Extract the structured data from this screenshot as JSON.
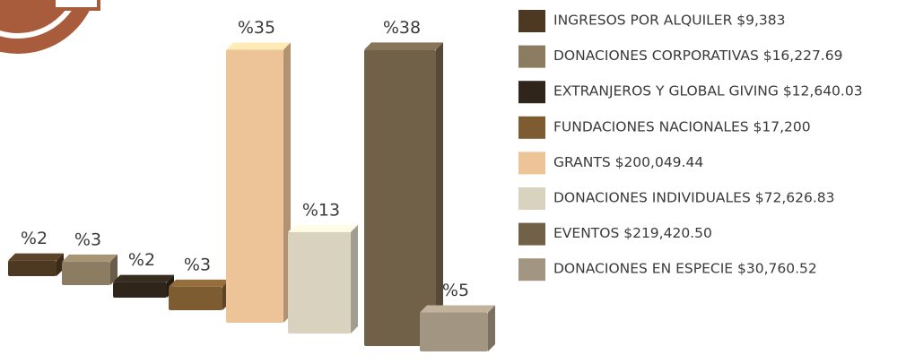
{
  "chart_data": {
    "type": "bar",
    "categories": [
      "INGRESOS POR ALQUILER $9,383",
      "DONACIONES CORPORATIVAS $16,227.69",
      "EXTRANJEROS Y GLOBAL GIVING $12,640.03",
      "FUNDACIONES NACIONALES $17,200",
      "GRANTS  $200,049.44",
      "DONACIONES INDIVIDUALES $72,626.83",
      "EVENTOS  $219,420.50",
      "DONACIONES EN ESPECIE $30,760.52"
    ],
    "values": [
      2,
      3,
      2,
      3,
      35,
      13,
      38,
      5
    ],
    "value_labels": [
      "%2",
      "%3",
      "%2",
      "%3",
      "%35",
      "%13",
      "%38",
      "%5"
    ],
    "colors": [
      "#4d3822",
      "#8c7c62",
      "#2f251a",
      "#7d5c32",
      "#ecc497",
      "#d8d2bf",
      "#716149",
      "#a29682"
    ]
  }
}
